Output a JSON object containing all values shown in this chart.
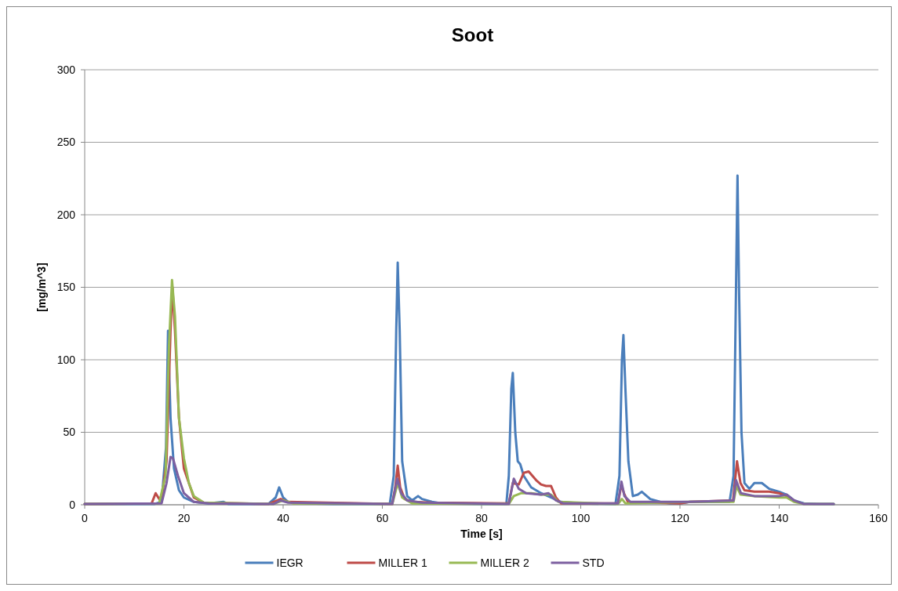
{
  "chart_data": {
    "type": "line",
    "title": "Soot",
    "xlabel": "Time [s]",
    "ylabel": "[mg/m^3]",
    "xlim": [
      0,
      160
    ],
    "xticks": [
      0,
      20,
      40,
      60,
      80,
      100,
      120,
      140,
      160
    ],
    "ylim": [
      0,
      300
    ],
    "yticks": [
      0,
      50,
      100,
      150,
      200,
      250,
      300
    ],
    "grid": "y",
    "legend": "bottom",
    "marker": "none",
    "line_style": "solid",
    "series": [
      {
        "name": "IEGR",
        "color": "#4a7ebb",
        "x": [
          0,
          14,
          15.5,
          16.4,
          16.8,
          17.3,
          18,
          19,
          20,
          22,
          25,
          28,
          29,
          37,
          38.5,
          39.2,
          40,
          41,
          45,
          50,
          61.5,
          62.3,
          62.8,
          63.1,
          63.5,
          64,
          65,
          66,
          67.2,
          68,
          70,
          72,
          80,
          85,
          85.5,
          86,
          86.3,
          86.8,
          87.3,
          87.8,
          88.5,
          90,
          92,
          94,
          96,
          100,
          107,
          107.8,
          108.3,
          108.6,
          109,
          109.6,
          110.5,
          111.5,
          112.3,
          114,
          116,
          118,
          120,
          122,
          125,
          130,
          130.8,
          131.3,
          131.6,
          131.9,
          132.4,
          133,
          134,
          135,
          136.5,
          138,
          140,
          141.5,
          143,
          145,
          148,
          151
        ],
        "values": [
          0.5,
          0.5,
          2,
          40,
          120,
          60,
          25,
          10,
          5,
          2,
          1,
          2,
          0.5,
          0.5,
          5,
          12,
          5,
          2,
          1,
          0.5,
          0.5,
          20,
          120,
          167,
          120,
          30,
          6,
          3,
          6,
          4,
          2,
          1,
          0.5,
          0.5,
          20,
          80,
          91,
          50,
          30,
          28,
          20,
          12,
          8,
          5,
          2,
          1,
          0.5,
          20,
          100,
          117,
          80,
          30,
          6,
          7,
          9,
          4,
          2,
          1,
          1,
          2,
          2,
          2,
          20,
          150,
          227,
          150,
          50,
          15,
          11,
          15,
          15,
          11,
          9,
          7,
          3,
          1,
          0.5,
          0.5
        ]
      },
      {
        "name": "MILLER 1",
        "color": "#be4b48",
        "x": [
          0,
          13.5,
          14.3,
          15,
          15.6,
          16.5,
          17.3,
          17.7,
          18.2,
          19,
          20,
          21,
          22,
          24,
          37,
          39.5,
          41,
          62,
          62.6,
          63.1,
          63.6,
          64.5,
          66,
          70,
          85.5,
          86.3,
          87.5,
          88.5,
          89.5,
          91,
          92,
          93,
          94,
          95,
          96,
          107.5,
          108.2,
          108.7,
          109.5,
          120,
          122,
          130.7,
          131.5,
          132.2,
          133,
          135,
          138,
          140,
          141.5,
          143
        ],
        "values": [
          0.5,
          1,
          8,
          4,
          6,
          30,
          120,
          150,
          120,
          60,
          25,
          15,
          5,
          1.5,
          0.5,
          4,
          2,
          0.5,
          12,
          27,
          12,
          4,
          2,
          1.5,
          1,
          15,
          14,
          22,
          23,
          17,
          14,
          13,
          13,
          5,
          1,
          1,
          14,
          8,
          2,
          1,
          2,
          3,
          30,
          15,
          10,
          9,
          9,
          8,
          6,
          3
        ]
      },
      {
        "name": "MILLER 2",
        "color": "#98b954",
        "x": [
          0,
          15,
          16.3,
          17,
          17.6,
          18.2,
          19,
          20,
          21,
          22,
          24,
          38,
          40,
          42,
          62,
          63.1,
          64,
          66,
          85.5,
          86.5,
          88,
          90,
          92,
          94,
          95.5,
          107.5,
          108.3,
          109,
          122,
          130.8,
          131.4,
          132.2,
          135,
          140,
          141.5,
          143,
          145,
          151
        ],
        "values": [
          0.5,
          1,
          20,
          110,
          155,
          130,
          60,
          32,
          15,
          6,
          1.5,
          0.5,
          3,
          1,
          0.5,
          15,
          5,
          1,
          0.5,
          6,
          8,
          8,
          7,
          7,
          2,
          0.5,
          4,
          1,
          2,
          2,
          13,
          7,
          6,
          5,
          5,
          2,
          0.5,
          0.5
        ]
      },
      {
        "name": "STD",
        "color": "#7d60a0",
        "x": [
          0,
          15.5,
          16.5,
          17.3,
          17.8,
          18.8,
          20,
          22,
          25,
          38,
          39.5,
          41,
          62,
          63,
          63.8,
          65,
          68,
          85.5,
          86.5,
          87.5,
          89,
          92,
          93.5,
          95,
          96.5,
          107.5,
          108.2,
          108.8,
          110,
          122,
          130.8,
          131.3,
          132.3,
          135,
          140,
          141.5,
          143,
          145,
          151
        ],
        "values": [
          0.5,
          1,
          15,
          33,
          32,
          20,
          8,
          2,
          1,
          0.5,
          3,
          1.5,
          0.5,
          18,
          8,
          3,
          1.5,
          0.5,
          18,
          11,
          8,
          7,
          8,
          3,
          1,
          1,
          16,
          6,
          2,
          2,
          3,
          17,
          8,
          6,
          6,
          7,
          3,
          0.5,
          0.5
        ]
      }
    ]
  }
}
